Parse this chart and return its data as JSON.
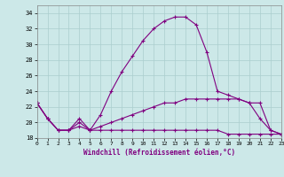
{
  "x": [
    0,
    1,
    2,
    3,
    4,
    5,
    6,
    7,
    8,
    9,
    10,
    11,
    12,
    13,
    14,
    15,
    16,
    17,
    18,
    19,
    20,
    21,
    22,
    23
  ],
  "temp": [
    22.5,
    20.5,
    19.0,
    19.0,
    20.5,
    19.0,
    21.0,
    24.0,
    26.5,
    28.5,
    30.5,
    32.0,
    33.0,
    33.5,
    33.5,
    32.5,
    29.0,
    24.0,
    23.5,
    23.0,
    22.5,
    20.5,
    19.0,
    18.5
  ],
  "windchill_high": [
    22.5,
    20.5,
    19.0,
    19.0,
    20.0,
    19.0,
    19.5,
    20.0,
    20.5,
    21.0,
    21.5,
    22.0,
    22.5,
    22.5,
    23.0,
    23.0,
    23.0,
    23.0,
    23.0,
    23.0,
    22.5,
    22.5,
    19.0,
    18.5
  ],
  "windchill_low": [
    22.5,
    20.5,
    19.0,
    19.0,
    19.5,
    19.0,
    19.0,
    19.0,
    19.0,
    19.0,
    19.0,
    19.0,
    19.0,
    19.0,
    19.0,
    19.0,
    19.0,
    19.0,
    18.5,
    18.5,
    18.5,
    18.5,
    18.5,
    18.5
  ],
  "line_color": "#800080",
  "bg_color": "#cce8e8",
  "grid_color": "#aacece",
  "xlabel": "Windchill (Refroidissement éolien,°C)",
  "ylim": [
    18,
    35
  ],
  "xlim": [
    0,
    23
  ],
  "yticks": [
    18,
    20,
    22,
    24,
    26,
    28,
    30,
    32,
    34
  ],
  "xticks": [
    0,
    1,
    2,
    3,
    4,
    5,
    6,
    7,
    8,
    9,
    10,
    11,
    12,
    13,
    14,
    15,
    16,
    17,
    18,
    19,
    20,
    21,
    22,
    23
  ],
  "marker": "+"
}
